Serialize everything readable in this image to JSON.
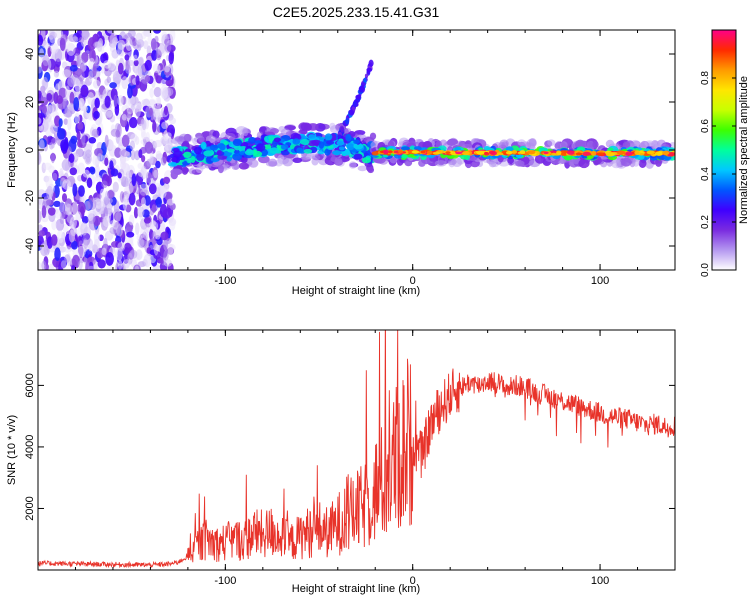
{
  "chart_data": [
    {
      "type": "heatmap",
      "title": "C2E5.2025.233.15.41.G31",
      "xlabel": "Height of straight line (km)",
      "ylabel": "Frequency (Hz)",
      "xlim": [
        -200,
        140
      ],
      "ylim": [
        -50,
        50
      ],
      "xticks": [
        -100,
        0,
        100
      ],
      "xtick_labels": [
        "-100",
        "0",
        "100"
      ],
      "yticks": [
        -40,
        -20,
        0,
        20,
        40
      ],
      "ytick_labels": [
        "-40",
        "-20",
        "0",
        "20",
        "40"
      ],
      "colorbar": {
        "label": "Normalized spectral amplitude",
        "range": [
          0.0,
          1.0
        ],
        "ticks": [
          0.0,
          0.2,
          0.4,
          0.6,
          0.8
        ],
        "tick_labels": [
          "0.0",
          "0.2",
          "0.4",
          "0.6",
          "0.8"
        ],
        "colormap": [
          "#ffffff",
          "#b497f0",
          "#7a2be0",
          "#3f00ff",
          "#0057ff",
          "#00c8ff",
          "#00ff9c",
          "#3dff00",
          "#c8ff00",
          "#ffe600",
          "#ff9a00",
          "#ff2a00",
          "#ff0088"
        ]
      },
      "regions": [
        {
          "x_range": [
            -200,
            -128
          ],
          "frequency_range": [
            -50,
            50
          ],
          "amplitude_range": [
            0.02,
            0.3
          ],
          "description": "noise"
        },
        {
          "x_range": [
            -128,
            -20
          ],
          "frequency_center": [
            [
              -128,
              -3
            ],
            [
              -100,
              0
            ],
            [
              -60,
              3
            ],
            [
              -35,
              2
            ],
            [
              -20,
              -2
            ]
          ],
          "spread_hz": 7,
          "amplitude_range": [
            0.2,
            0.5
          ]
        },
        {
          "x_range": [
            -20,
            140
          ],
          "frequency_center": [
            [
              -20,
              -1
            ],
            [
              140,
              -1.5
            ]
          ],
          "spread_hz": 3,
          "amplitude_range": [
            0.75,
            1.0
          ]
        },
        {
          "x_range": [
            -40,
            -22
          ],
          "frequency_center": [
            [
              -40,
              5
            ],
            [
              -30,
              20
            ],
            [
              -20,
              40
            ]
          ],
          "spread_hz": 2,
          "amplitude_range": [
            0.15,
            0.35
          ],
          "description": "ascending trace"
        }
      ]
    },
    {
      "type": "line",
      "xlabel": "Height of straight line (km)",
      "ylabel": "SNR (10 * v/v)",
      "xlim": [
        -200,
        140
      ],
      "ylim": [
        0,
        7800
      ],
      "xticks": [
        -100,
        0,
        100
      ],
      "xtick_labels": [
        "-100",
        "0",
        "100"
      ],
      "yticks": [
        2000,
        4000,
        6000
      ],
      "ytick_labels": [
        "2000",
        "4000",
        "6000"
      ],
      "series": [
        {
          "name": "SNR",
          "color": "#e8332a",
          "x": [
            -200,
            -190,
            -180,
            -170,
            -160,
            -150,
            -140,
            -130,
            -125,
            -120,
            -115,
            -110,
            -105,
            -100,
            -95,
            -90,
            -85,
            -80,
            -75,
            -70,
            -65,
            -60,
            -55,
            -50,
            -45,
            -40,
            -35,
            -30,
            -25,
            -20,
            -15,
            -10,
            -5,
            0,
            5,
            10,
            15,
            20,
            25,
            30,
            35,
            40,
            45,
            50,
            55,
            60,
            65,
            70,
            75,
            80,
            85,
            90,
            95,
            100,
            105,
            110,
            115,
            120,
            125,
            130,
            135,
            140
          ],
          "y": [
            220,
            210,
            200,
            190,
            180,
            170,
            165,
            190,
            260,
            450,
            800,
            1000,
            850,
            900,
            1000,
            950,
            1200,
            1150,
            1250,
            1050,
            900,
            1100,
            1250,
            1350,
            1200,
            1500,
            1700,
            1900,
            2100,
            2600,
            2900,
            3500,
            3900,
            4100,
            3700,
            4800,
            5300,
            5700,
            5900,
            6100,
            6000,
            6150,
            6100,
            5900,
            6000,
            5950,
            5800,
            5700,
            5600,
            5500,
            5400,
            5300,
            5200,
            5100,
            5000,
            4950,
            4900,
            4800,
            4700,
            4750,
            4650,
            4700
          ]
        }
      ]
    }
  ]
}
